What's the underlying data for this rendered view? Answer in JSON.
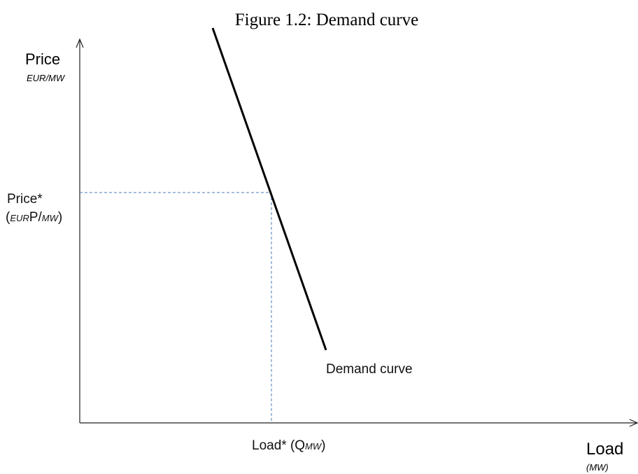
{
  "title": "Figure 1.2: Demand curve",
  "y_axis": {
    "label": "Price",
    "unit": "EUR/MW"
  },
  "x_axis": {
    "label": "Load",
    "unit": "(MW)"
  },
  "price_marker": {
    "label": "Price*",
    "parts": [
      "(",
      "EUR",
      "P/",
      "MW",
      ")"
    ]
  },
  "load_marker": {
    "parts": [
      "Load* (Q",
      "MW",
      ")"
    ]
  },
  "curve_label": "Demand curve"
}
